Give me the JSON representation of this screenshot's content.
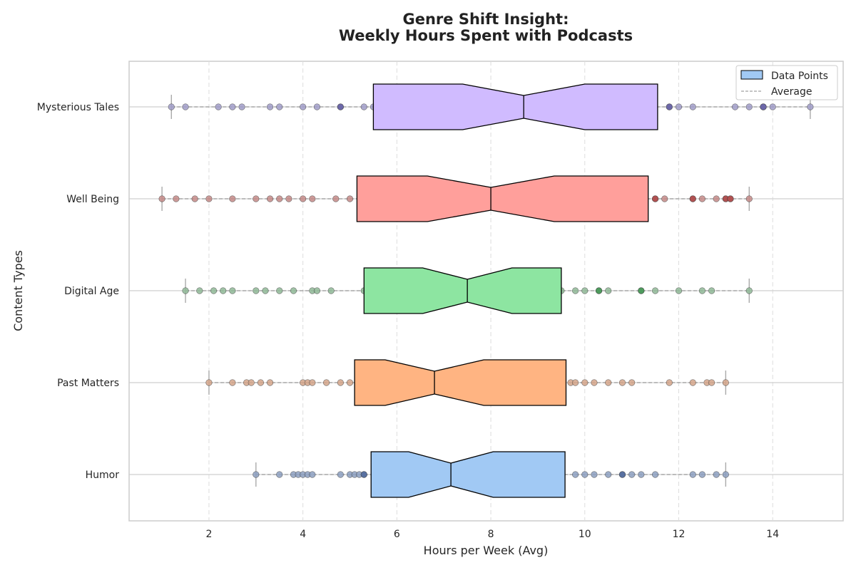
{
  "chart_data": {
    "type": "boxplot",
    "title_line1": "Genre Shift Insight:",
    "title_line2": "Weekly Hours Spent with Podcasts",
    "xlabel": "Hours per Week (Avg)",
    "ylabel": "Content Types",
    "xlim": [
      0.3,
      15.5
    ],
    "xticks": [
      2,
      4,
      6,
      8,
      10,
      12,
      14
    ],
    "grid": "x-dashed",
    "legend_position": "top-right",
    "legend": [
      {
        "label": "Data Points",
        "kind": "box"
      },
      {
        "label": "Average",
        "kind": "dashed-line"
      }
    ],
    "categories": [
      "Mysterious Tales",
      "Well Being",
      "Digital Age",
      "Past Matters",
      "Humor"
    ],
    "series": [
      {
        "name": "Mysterious Tales",
        "box_color": "#d0bbff",
        "point_color": "#a09cc8",
        "point_dark": "#6b67a8",
        "whisker_low": 1.2,
        "q1": 5.5,
        "notch_low": 7.4,
        "median": 8.7,
        "notch_high": 10.0,
        "q3": 11.55,
        "whisker_high": 14.8,
        "points": [
          1.2,
          1.5,
          2.2,
          2.5,
          2.7,
          3.3,
          3.5,
          4.0,
          4.3,
          4.8,
          4.8,
          5.3,
          5.5,
          11.8,
          11.8,
          12.0,
          12.3,
          13.2,
          13.5,
          13.8,
          13.8,
          13.8,
          14.0,
          14.8
        ]
      },
      {
        "name": "Well Being",
        "box_color": "#ff9f9b",
        "point_color": "#c48a87",
        "point_dark": "#b05050",
        "whisker_low": 1.0,
        "q1": 5.15,
        "notch_low": 6.65,
        "median": 8.0,
        "notch_high": 9.35,
        "q3": 11.35,
        "whisker_high": 13.5,
        "points": [
          1.0,
          1.3,
          1.7,
          2.0,
          2.5,
          3.0,
          3.3,
          3.5,
          3.7,
          4.0,
          4.2,
          4.7,
          5.0,
          11.5,
          11.5,
          11.7,
          12.3,
          12.3,
          12.5,
          12.8,
          13.0,
          13.0,
          13.1,
          13.1,
          13.5
        ]
      },
      {
        "name": "Digital Age",
        "box_color": "#8de5a1",
        "point_color": "#8fb896",
        "point_dark": "#4c9a5c",
        "whisker_low": 1.5,
        "q1": 5.3,
        "notch_low": 6.55,
        "median": 7.5,
        "notch_high": 8.45,
        "q3": 9.5,
        "whisker_high": 13.5,
        "points": [
          1.5,
          1.8,
          2.1,
          2.3,
          2.5,
          3.0,
          3.2,
          3.5,
          3.8,
          4.2,
          4.3,
          4.6,
          5.3,
          9.5,
          9.8,
          10.0,
          10.3,
          10.3,
          10.5,
          11.2,
          11.2,
          11.5,
          12.0,
          12.5,
          12.7,
          13.5
        ]
      },
      {
        "name": "Past Matters",
        "box_color": "#ffb482",
        "point_color": "#d4a58a",
        "point_dark": "#b07850",
        "whisker_low": 2.0,
        "q1": 5.1,
        "notch_low": 5.75,
        "median": 6.8,
        "notch_high": 7.85,
        "q3": 9.6,
        "whisker_high": 13.0,
        "points": [
          2.0,
          2.5,
          2.8,
          2.9,
          3.1,
          3.3,
          4.0,
          4.1,
          4.2,
          4.5,
          4.8,
          5.0,
          9.7,
          9.8,
          10.0,
          10.2,
          10.5,
          10.8,
          11.0,
          11.8,
          12.3,
          12.6,
          12.7,
          13.0
        ]
      },
      {
        "name": "Humor",
        "box_color": "#a1c9f4",
        "point_color": "#8c9fc0",
        "point_dark": "#5870a0",
        "whisker_low": 3.0,
        "q1": 5.45,
        "notch_low": 6.25,
        "median": 7.15,
        "notch_high": 8.05,
        "q3": 9.58,
        "whisker_high": 13.0,
        "points": [
          3.0,
          3.5,
          3.8,
          3.9,
          4.0,
          4.1,
          4.2,
          4.8,
          5.0,
          5.1,
          5.2,
          5.3,
          5.3,
          9.8,
          10.0,
          10.2,
          10.5,
          10.8,
          10.8,
          11.0,
          11.2,
          11.5,
          12.3,
          12.5,
          12.8,
          13.0
        ]
      }
    ]
  }
}
